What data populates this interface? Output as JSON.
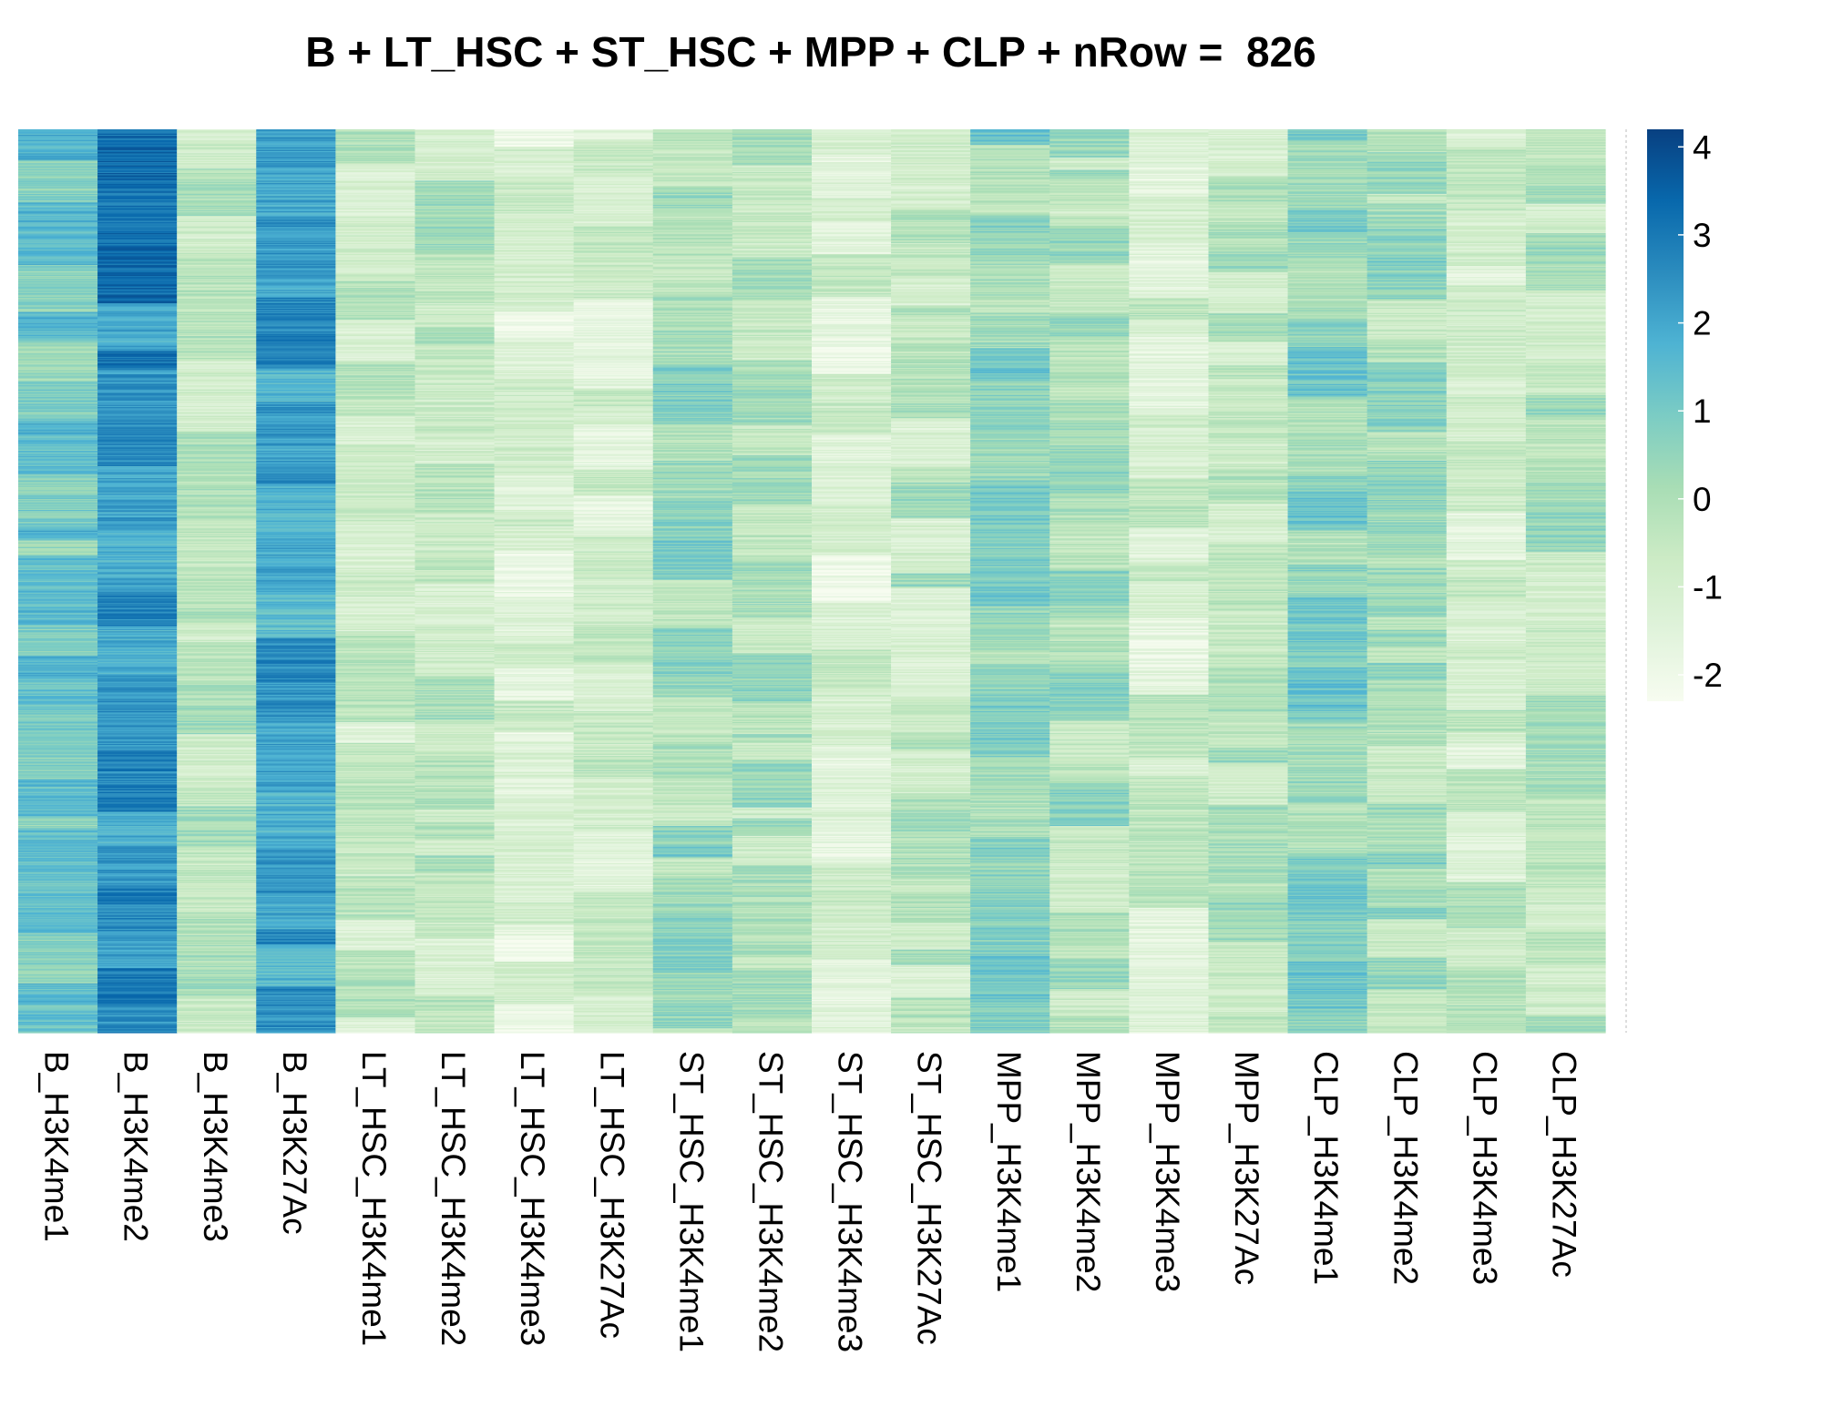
{
  "chart_data": {
    "type": "heatmap",
    "title": "B + LT_HSC + ST_HSC + MPP + CLP + nRow =  826",
    "n_rows": 826,
    "columns": [
      "B_H3K4me1",
      "B_H3K4me2",
      "B_H3K4me3",
      "B_H3K27Ac",
      "LT_HSC_H3K4me1",
      "LT_HSC_H3K4me2",
      "LT_HSC_H3K4me3",
      "LT_HSC_H3K27Ac",
      "ST_HSC_H3K4me1",
      "ST_HSC_H3K4me2",
      "ST_HSC_H3K4me3",
      "ST_HSC_H3K27Ac",
      "MPP_H3K4me1",
      "MPP_H3K4me2",
      "MPP_H3K4me3",
      "MPP_H3K27Ac",
      "CLP_H3K4me1",
      "CLP_H3K4me2",
      "CLP_H3K4me3",
      "CLP_H3K27Ac"
    ],
    "column_mean_scores": [
      1.0,
      2.6,
      -0.2,
      2.0,
      -0.8,
      -0.5,
      -1.4,
      -1.0,
      0.2,
      -0.1,
      -1.3,
      -0.5,
      0.5,
      -0.1,
      -1.0,
      -0.4,
      0.5,
      0.0,
      -0.8,
      -0.3
    ],
    "color_scale": {
      "min": -2.3,
      "max": 4.2,
      "ticks": [
        "4",
        "3",
        "2",
        "1",
        "0",
        "-1",
        "-2"
      ],
      "tick_values": [
        4,
        3,
        2,
        1,
        0,
        -1,
        -2
      ],
      "colors": [
        "#f7fcf0",
        "#e0f3db",
        "#ccebc5",
        "#a8ddb5",
        "#7bccc4",
        "#4eb3d3",
        "#2b8cbe",
        "#0868ac",
        "#084081"
      ]
    }
  }
}
